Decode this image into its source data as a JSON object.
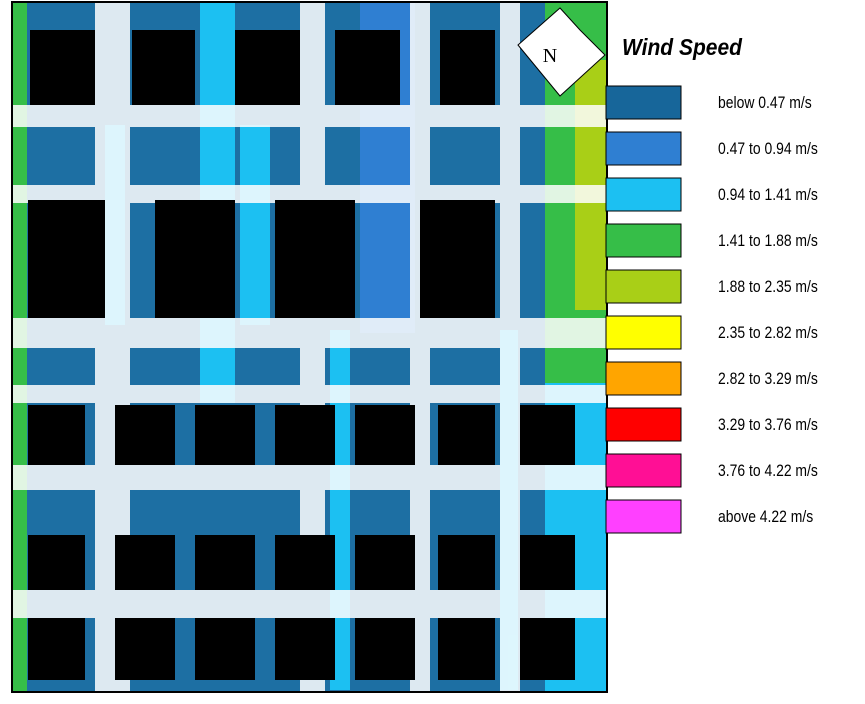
{
  "compass": {
    "label": "N"
  },
  "legend": {
    "title": "Wind Speed",
    "items": [
      {
        "label": "below 0.47 m/s",
        "color": "#17669a"
      },
      {
        "label": "0.47 to 0.94 m/s",
        "color": "#2f7fd2"
      },
      {
        "label": "0.94 to 1.41 m/s",
        "color": "#1cc0f2"
      },
      {
        "label": "1.41 to 1.88 m/s",
        "color": "#36be48"
      },
      {
        "label": "1.88 to 2.35 m/s",
        "color": "#a9cf17"
      },
      {
        "label": "2.35 to 2.82 m/s",
        "color": "#ffff00"
      },
      {
        "label": "2.82 to 3.29 m/s",
        "color": "#ffa500"
      },
      {
        "label": "3.29 to 3.76 m/s",
        "color": "#ff0000"
      },
      {
        "label": "3.76 to 4.22 m/s",
        "color": "#ff0f95"
      },
      {
        "label": "above 4.22 m/s",
        "color": "#ff40ff"
      }
    ]
  }
}
